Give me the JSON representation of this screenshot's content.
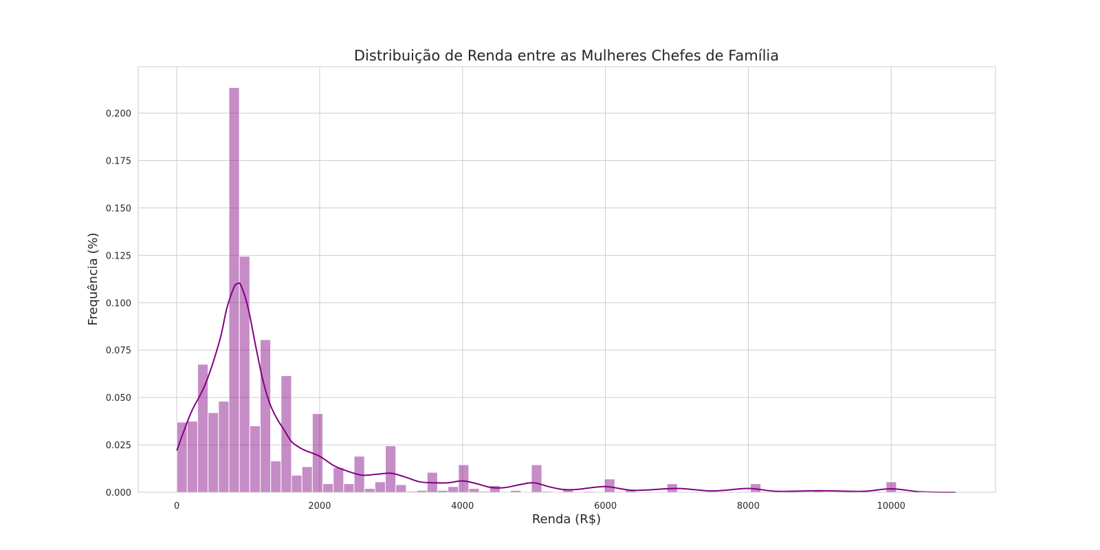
{
  "chart_data": {
    "type": "bar",
    "title": "Distribuição de Renda entre as Mulheres Chefes de Família",
    "xlabel": "Renda (R$)",
    "ylabel": "Frequência (%)",
    "xlim": [
      -540,
      11460
    ],
    "ylim": [
      0,
      0.2245
    ],
    "grid": true,
    "legend": "none",
    "x_ticks": [
      0,
      2000,
      4000,
      6000,
      8000,
      10000
    ],
    "x_tick_labels": [
      "0",
      "2000",
      "4000",
      "6000",
      "8000",
      "10000"
    ],
    "y_ticks": [
      0,
      0.025,
      0.05,
      0.075,
      0.1,
      0.125,
      0.15,
      0.175,
      0.2
    ],
    "y_tick_labels": [
      "0.000",
      "0.025",
      "0.050",
      "0.075",
      "0.100",
      "0.125",
      "0.150",
      "0.175",
      "0.200"
    ],
    "bar_color": "#800080",
    "bar_opacity": 0.45,
    "kde_color": "#800080",
    "bin_edges": [
      0,
      146,
      292,
      438,
      584,
      730,
      876,
      1022,
      1168,
      1314,
      1460,
      1606,
      1752,
      1898,
      2044,
      2190,
      2336,
      2482,
      2628,
      2774,
      2920,
      3066,
      3212,
      3358,
      3504,
      3650,
      3796,
      3942,
      4088,
      4234,
      4380,
      4526,
      4672,
      4818,
      4964,
      5110,
      5256,
      5402,
      5548,
      5694,
      5840,
      5986,
      6132,
      6278,
      6424,
      6570,
      6716,
      6862,
      7008,
      7154,
      7300,
      7446,
      7592,
      7738,
      7884,
      8030,
      8176,
      8322,
      8468,
      8614,
      8760,
      8906,
      9052,
      9198,
      9344,
      9490,
      9636,
      9782,
      9928,
      10074
    ],
    "values": [
      0.037,
      0.0375,
      0.0675,
      0.042,
      0.048,
      0.2135,
      0.1245,
      0.035,
      0.0805,
      0.0165,
      0.0615,
      0.009,
      0.0135,
      0.0415,
      0.0045,
      0.013,
      0.0045,
      0.019,
      0.002,
      0.0055,
      0.0245,
      0.004,
      0.0005,
      0.001,
      0.0105,
      0.001,
      0.003,
      0.0145,
      0.002,
      0.0005,
      0.0035,
      0.0,
      0.001,
      0.0,
      0.0145,
      0.0005,
      0.0,
      0.0015,
      0.0,
      0.0005,
      0.0,
      0.007,
      0.0,
      0.0015,
      0.0,
      0.0,
      0.0,
      0.0045,
      0.0,
      0.0,
      0.0,
      0.0,
      0.0,
      0.0,
      0.0,
      0.0045,
      0.0,
      0.0,
      0.0,
      0.0,
      0.0,
      0.0008,
      0.0,
      0.0,
      0.0,
      0.0,
      0.0,
      0.0,
      0.0055
    ],
    "kde": {
      "x": [
        0,
        200,
        400,
        600,
        700,
        800,
        850,
        900,
        1000,
        1100,
        1200,
        1300,
        1400,
        1500,
        1600,
        1700,
        1800,
        2000,
        2200,
        2400,
        2600,
        2800,
        3000,
        3200,
        3400,
        3600,
        3800,
        4000,
        4200,
        4400,
        4600,
        4800,
        5000,
        5200,
        5400,
        5600,
        6000,
        6400,
        7000,
        7500,
        8000,
        8400,
        9000,
        9600,
        10000,
        10400,
        10900
      ],
      "y": [
        0.022,
        0.042,
        0.057,
        0.08,
        0.097,
        0.108,
        0.11,
        0.109,
        0.097,
        0.078,
        0.06,
        0.047,
        0.039,
        0.033,
        0.027,
        0.024,
        0.022,
        0.019,
        0.014,
        0.011,
        0.009,
        0.0095,
        0.01,
        0.008,
        0.0055,
        0.005,
        0.005,
        0.006,
        0.0045,
        0.0025,
        0.0025,
        0.004,
        0.005,
        0.003,
        0.0015,
        0.0015,
        0.003,
        0.001,
        0.002,
        0.0007,
        0.002,
        0.0005,
        0.0008,
        0.0005,
        0.0018,
        0.0003,
        0.0
      ]
    }
  }
}
